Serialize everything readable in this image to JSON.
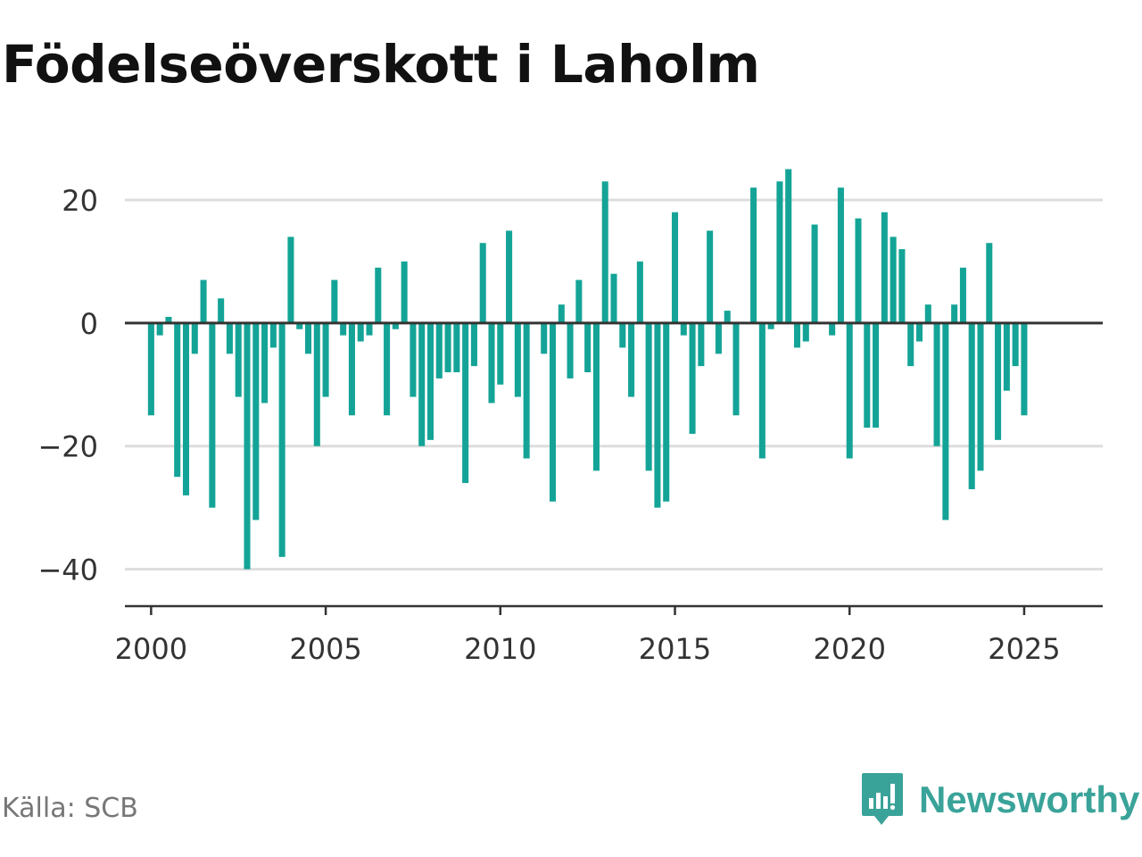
{
  "title": "Födelseöverskott i Laholm",
  "source": "Källa: SCB",
  "brand": {
    "name": "Newsworthy",
    "icon": "newsworthy-logo-icon"
  },
  "colors": {
    "bar": "#14a497",
    "zero_line": "#333333",
    "grid": "#dddddd",
    "brand": "#3aa399"
  },
  "chart_data": {
    "type": "bar",
    "title": "Födelseöverskott i Laholm",
    "xlabel": "",
    "ylabel": "",
    "frequency": "quarterly",
    "x": [
      2000.0,
      2000.25,
      2000.5,
      2000.75,
      2001.0,
      2001.25,
      2001.5,
      2001.75,
      2002.0,
      2002.25,
      2002.5,
      2002.75,
      2003.0,
      2003.25,
      2003.5,
      2003.75,
      2004.0,
      2004.25,
      2004.5,
      2004.75,
      2005.0,
      2005.25,
      2005.5,
      2005.75,
      2006.0,
      2006.25,
      2006.5,
      2006.75,
      2007.0,
      2007.25,
      2007.5,
      2007.75,
      2008.0,
      2008.25,
      2008.5,
      2008.75,
      2009.0,
      2009.25,
      2009.5,
      2009.75,
      2010.0,
      2010.25,
      2010.5,
      2010.75,
      2011.0,
      2011.25,
      2011.5,
      2011.75,
      2012.0,
      2012.25,
      2012.5,
      2012.75,
      2013.0,
      2013.25,
      2013.5,
      2013.75,
      2014.0,
      2014.25,
      2014.5,
      2014.75,
      2015.0,
      2015.25,
      2015.5,
      2015.75,
      2016.0,
      2016.25,
      2016.5,
      2016.75,
      2017.0,
      2017.25,
      2017.5,
      2017.75,
      2018.0,
      2018.25,
      2018.5,
      2018.75,
      2019.0,
      2019.25,
      2019.5,
      2019.75,
      2020.0,
      2020.25,
      2020.5,
      2020.75,
      2021.0,
      2021.25,
      2021.5,
      2021.75,
      2022.0,
      2022.25,
      2022.5,
      2022.75,
      2023.0,
      2023.25,
      2023.5,
      2023.75,
      2024.0,
      2024.25,
      2024.5,
      2024.75,
      2025.0,
      2025.25
    ],
    "values": [
      -15,
      -2,
      1,
      -25,
      -28,
      -5,
      7,
      -30,
      4,
      -5,
      -12,
      -40,
      -32,
      -13,
      -4,
      -38,
      14,
      -1,
      -5,
      -20,
      -12,
      7,
      -2,
      -15,
      -3,
      -2,
      9,
      -15,
      -1,
      10,
      -12,
      -20,
      -19,
      -9,
      -8,
      -8,
      -26,
      -7,
      13,
      -13,
      -10,
      15,
      -12,
      -22,
      0,
      -5,
      -29,
      3,
      -9,
      7,
      -8,
      -24,
      23,
      8,
      -4,
      -12,
      10,
      -24,
      -30,
      -29,
      18,
      -2,
      -18,
      -7,
      15,
      -5,
      2,
      -15,
      0,
      22,
      -22,
      -1,
      23,
      25,
      -4,
      -3,
      16,
      0,
      -2,
      22,
      -22,
      17,
      -17,
      -17,
      18,
      14,
      12,
      -7,
      -3,
      3,
      -20,
      -32,
      3,
      9,
      -27,
      -24,
      13,
      -19,
      -11,
      -7,
      -15,
      0
    ],
    "xlim": [
      1999.25,
      2027.25
    ],
    "ylim": [
      -46,
      30
    ],
    "xticks": [
      2000,
      2005,
      2010,
      2015,
      2020,
      2025
    ],
    "yticks": [
      20,
      0,
      -20,
      -40
    ],
    "ytick_labels": [
      "20",
      "0",
      "−20",
      "−40"
    ],
    "grid": true
  }
}
